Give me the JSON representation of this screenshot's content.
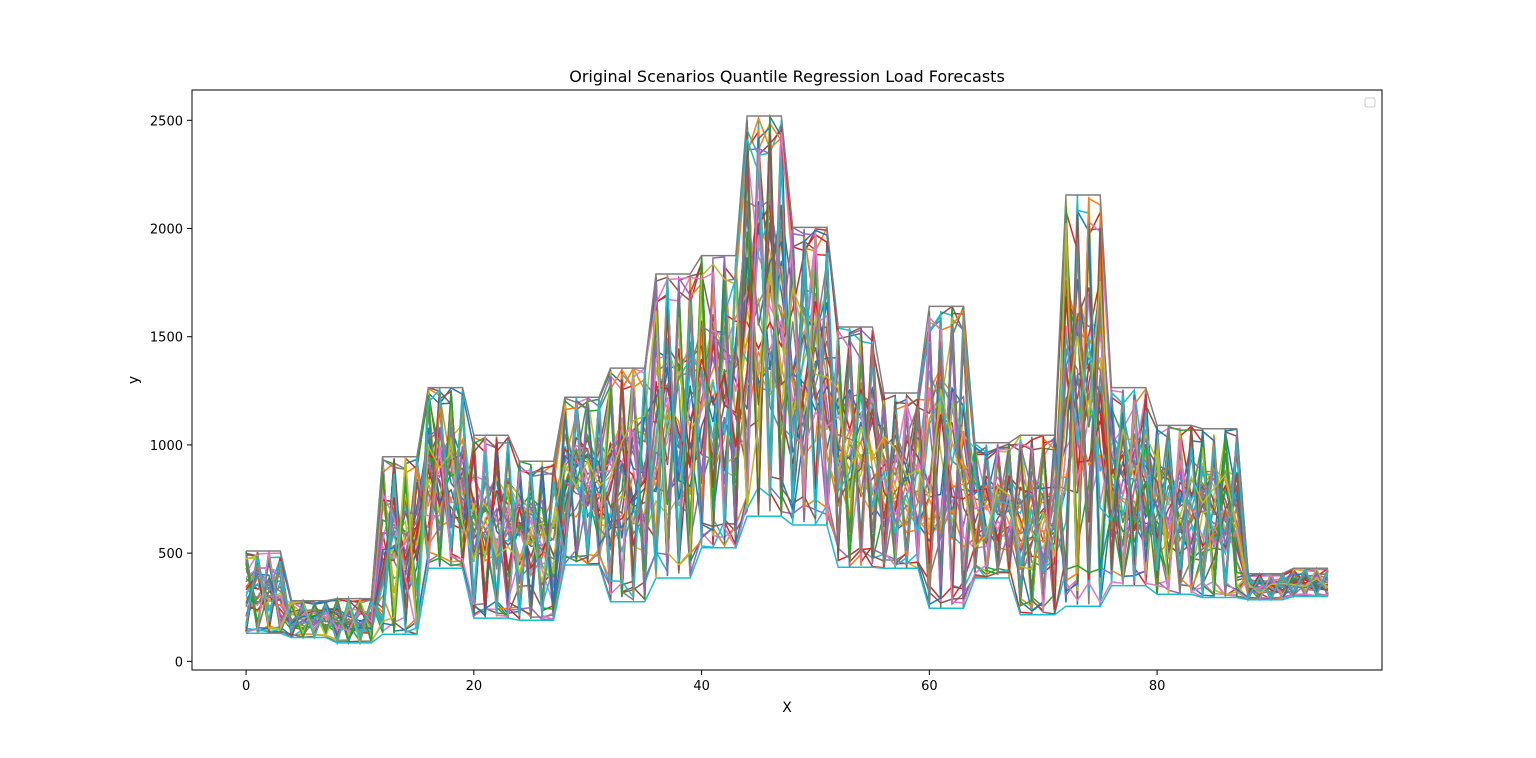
{
  "chart_data": {
    "type": "line",
    "title": "Original Scenarios Quantile Regression Load Forecasts",
    "xlabel": "X",
    "ylabel": "y",
    "xlim": [
      -4.75,
      99.75
    ],
    "ylim": [
      -40,
      2640
    ],
    "xticks": [
      0,
      20,
      40,
      60,
      80
    ],
    "yticks": [
      0,
      500,
      1000,
      1500,
      2000,
      2500
    ],
    "grid": false,
    "legend": "top-right (empty)",
    "x_range": [
      0,
      95
    ],
    "block_size": 4,
    "block_bounds": [
      [
        130,
        510
      ],
      [
        110,
        280
      ],
      [
        85,
        290
      ],
      [
        125,
        945
      ],
      [
        430,
        1265
      ],
      [
        200,
        1045
      ],
      [
        190,
        925
      ],
      [
        445,
        1220
      ],
      [
        275,
        1355
      ],
      [
        385,
        1790
      ],
      [
        525,
        1875
      ],
      [
        670,
        2520
      ],
      [
        630,
        2005
      ],
      [
        435,
        1545
      ],
      [
        430,
        1240
      ],
      [
        245,
        1640
      ],
      [
        385,
        1010
      ],
      [
        215,
        1045
      ],
      [
        255,
        2155
      ],
      [
        350,
        1265
      ],
      [
        310,
        1090
      ],
      [
        295,
        1075
      ],
      [
        285,
        405
      ],
      [
        300,
        430
      ]
    ],
    "series_colors": [
      "#1f77b4",
      "#ff7f0e",
      "#2ca02c",
      "#d62728",
      "#9467bd",
      "#8c564b",
      "#e377c2",
      "#7f7f7f",
      "#bcbd22",
      "#17becf"
    ],
    "series_count": 60,
    "note_series": "Many overlapping scenario lines (random scenarios between quantile bounds in each 4-step block)."
  }
}
